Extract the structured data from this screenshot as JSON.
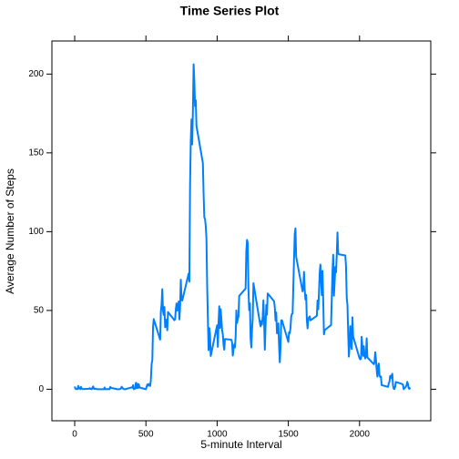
{
  "chart_data": {
    "type": "line",
    "title": "Time Series Plot",
    "x_label": "5-minute Interval",
    "y_label": "Average Number of Steps",
    "color": "#0080ff",
    "xlim": [
      -160,
      2500
    ],
    "ylim": [
      -20,
      221
    ],
    "xticks": [
      0,
      500,
      1000,
      1500,
      2000
    ],
    "yticks": [
      0,
      50,
      100,
      150,
      200
    ],
    "x": [
      0,
      5,
      10,
      15,
      20,
      25,
      30,
      35,
      40,
      45,
      50,
      55,
      100,
      105,
      110,
      115,
      120,
      125,
      130,
      135,
      140,
      145,
      150,
      155,
      200,
      205,
      210,
      215,
      220,
      225,
      230,
      235,
      240,
      245,
      250,
      255,
      300,
      305,
      310,
      315,
      320,
      325,
      330,
      335,
      340,
      345,
      350,
      355,
      400,
      405,
      410,
      415,
      420,
      425,
      430,
      435,
      440,
      445,
      450,
      455,
      500,
      505,
      510,
      515,
      520,
      525,
      530,
      535,
      540,
      545,
      550,
      555,
      600,
      605,
      610,
      615,
      620,
      625,
      630,
      635,
      640,
      645,
      650,
      655,
      700,
      705,
      710,
      715,
      720,
      725,
      730,
      735,
      740,
      745,
      750,
      755,
      800,
      805,
      810,
      815,
      820,
      825,
      830,
      835,
      840,
      845,
      850,
      855,
      900,
      905,
      910,
      915,
      920,
      925,
      930,
      935,
      940,
      945,
      950,
      955,
      1000,
      1005,
      1010,
      1015,
      1020,
      1025,
      1030,
      1035,
      1040,
      1045,
      1050,
      1055,
      1100,
      1105,
      1110,
      1115,
      1120,
      1125,
      1130,
      1135,
      1140,
      1145,
      1150,
      1155,
      1200,
      1205,
      1210,
      1215,
      1220,
      1225,
      1230,
      1235,
      1240,
      1245,
      1250,
      1255,
      1300,
      1305,
      1310,
      1315,
      1320,
      1325,
      1330,
      1335,
      1340,
      1345,
      1350,
      1355,
      1400,
      1405,
      1410,
      1415,
      1420,
      1425,
      1430,
      1435,
      1440,
      1445,
      1450,
      1455,
      1500,
      1505,
      1510,
      1515,
      1520,
      1525,
      1530,
      1535,
      1540,
      1545,
      1550,
      1555,
      1600,
      1605,
      1610,
      1615,
      1620,
      1625,
      1630,
      1635,
      1640,
      1645,
      1650,
      1655,
      1700,
      1705,
      1710,
      1715,
      1720,
      1725,
      1730,
      1735,
      1740,
      1745,
      1750,
      1755,
      1800,
      1805,
      1810,
      1815,
      1820,
      1825,
      1830,
      1835,
      1840,
      1845,
      1850,
      1855,
      1900,
      1905,
      1910,
      1915,
      1920,
      1925,
      1930,
      1935,
      1940,
      1945,
      1950,
      1955,
      2000,
      2005,
      2010,
      2015,
      2020,
      2025,
      2030,
      2035,
      2040,
      2045,
      2050,
      2055,
      2100,
      2105,
      2110,
      2115,
      2120,
      2125,
      2130,
      2135,
      2140,
      2145,
      2150,
      2155,
      2200,
      2205,
      2210,
      2215,
      2220,
      2225,
      2230,
      2235,
      2240,
      2245,
      2250,
      2255,
      2300,
      2305,
      2310,
      2315,
      2320,
      2325,
      2330,
      2335,
      2340,
      2345,
      2350,
      2355
    ],
    "values": [
      1.7,
      0.3,
      0.1,
      0.2,
      0.1,
      2.1,
      0.5,
      0.9,
      0,
      1.5,
      0.3,
      0.1,
      0.3,
      0.7,
      0.2,
      0.3,
      0,
      1.1,
      1.8,
      0.2,
      0.2,
      0.4,
      0.3,
      0,
      0,
      0,
      1.1,
      0,
      0,
      0.1,
      0,
      0.2,
      0,
      0,
      1.5,
      0.9,
      0,
      0,
      0,
      0,
      0.2,
      0.6,
      1.6,
      0.6,
      0.5,
      0.1,
      0,
      0,
      1.2,
      0.9,
      2.6,
      0,
      0.3,
      0.4,
      4.1,
      0.7,
      3.5,
      0.8,
      3.1,
      1.1,
      0,
      1.6,
      3,
      2.2,
      3.3,
      3,
      2.1,
      6.1,
      16,
      18.3,
      39.5,
      44.5,
      31.5,
      49.3,
      53.8,
      63.5,
      50,
      47.1,
      52.2,
      39.3,
      44,
      44.2,
      37.4,
      49,
      43.8,
      44.4,
      50.5,
      54.5,
      49.9,
      51,
      55.7,
      44.3,
      52.3,
      69.5,
      57.8,
      56.2,
      73.4,
      68.2,
      129.4,
      157.5,
      171.2,
      155.4,
      177.3,
      206.2,
      195.9,
      179.6,
      183.4,
      167,
      143.5,
      124,
      109.1,
      108.1,
      103.7,
      95.9,
      66.2,
      45.2,
      24.8,
      38.8,
      35,
      21.1,
      40.6,
      26.9,
      42.4,
      52.7,
      38.9,
      50.8,
      44.3,
      37.4,
      34.7,
      28.3,
      25.1,
      31.9,
      31.4,
      29.7,
      21.3,
      25.5,
      28.4,
      26.5,
      33.4,
      49.98,
      42,
      44.6,
      46,
      59.2,
      63.9,
      87.7,
      94.8,
      92.8,
      63.4,
      50.2,
      54.5,
      32.4,
      26.5,
      37.7,
      45.1,
      67.3,
      42.3,
      39.9,
      43.3,
      40.98,
      46.2,
      56.4,
      42.8,
      25.1,
      39.96,
      53.5,
      47.3,
      60.8,
      55.8,
      51.96,
      43.6,
      48.7,
      35.5,
      37.5,
      41.8,
      27.5,
      17.1,
      26.1,
      43.6,
      43.8,
      30,
      36.1,
      35.5,
      38.8,
      45.96,
      47.8,
      48.1,
      65.3,
      82.9,
      98.7,
      102.1,
      83.96,
      62.1,
      64.1,
      74.5,
      63.2,
      56.9,
      59.8,
      43.9,
      38.6,
      44.7,
      45.5,
      46.2,
      43.7,
      46.6,
      56.3,
      50.7,
      61.2,
      73.4,
      79.1,
      68.9,
      59.7,
      75.1,
      56.5,
      34.8,
      37.5,
      40.7,
      58,
      74.7,
      85.3,
      59.3,
      67.8,
      77.7,
      74.2,
      85.3,
      99.5,
      86.6,
      85.6,
      84.9,
      77.8,
      58,
      53.4,
      36.3,
      20.7,
      27.4,
      40,
      30.2,
      25.5,
      45.7,
      33.5,
      19.6,
      19,
      19.3,
      33.3,
      26.8,
      21.2,
      27.3,
      21.3,
      19.5,
      21.3,
      32.3,
      20.2,
      15.9,
      17.2,
      23.5,
      19.2,
      12.5,
      8,
      14.7,
      16.3,
      8.7,
      7.8,
      8.1,
      2.6,
      1.5,
      3.7,
      4.8,
      8.5,
      7.1,
      8.7,
      9.8,
      2.2,
      0.3,
      0.1,
      1.6,
      4.6,
      3.3,
      2.8,
      0,
      0.8,
      0.96,
      1.6,
      2.6,
      4.7,
      3.3,
      0.6,
      0.2,
      1.1
    ]
  }
}
